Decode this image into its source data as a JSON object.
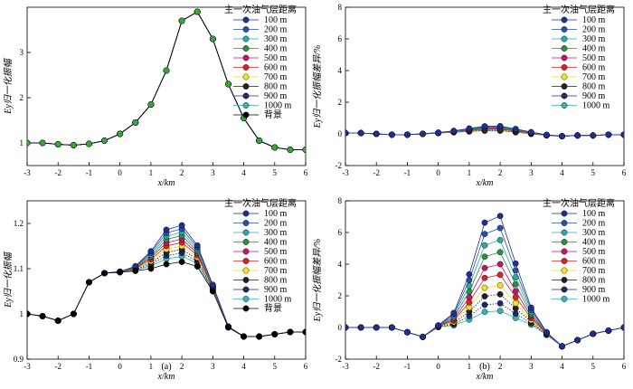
{
  "colors": {
    "100 m": "#1f2f8f",
    "200 m": "#2a4fa8",
    "300 m": "#2aa7a7",
    "400 m": "#2b8f3c",
    "500 m": "#c0156b",
    "600 m": "#d4242a",
    "700 m": "#f2e21a",
    "800 m": "#222222",
    "900 m": "#1b2a70",
    "1000 m": "#37b3b0",
    "背景": "#000000"
  },
  "panel_labels": [
    "(a)",
    "(b)"
  ],
  "chart_data": [
    {
      "id": "top-left",
      "type": "line",
      "title": "",
      "xlabel": "x/km",
      "ylabel": "Ey归一化振幅",
      "xlim": [
        -3,
        6
      ],
      "ylim": [
        0.5,
        4
      ],
      "xticks": [
        -3,
        -2,
        -1,
        0,
        1,
        2,
        3,
        4,
        5,
        6
      ],
      "yticks": [
        1,
        2,
        3
      ],
      "legend_title": "主一次油气层距离",
      "legend": [
        "100 m",
        "200 m",
        "300 m",
        "400 m",
        "500 m",
        "600 m",
        "700 m",
        "800 m",
        "900 m",
        "1000 m",
        "背景"
      ],
      "x": [
        -3,
        -2.5,
        -2,
        -1.5,
        -1,
        -0.5,
        0,
        0.5,
        1,
        1.5,
        2,
        2.5,
        3,
        3.5,
        4,
        4.5,
        5,
        5.5,
        6
      ],
      "base": [
        1.0,
        1.0,
        0.97,
        0.95,
        0.98,
        1.05,
        1.2,
        1.45,
        1.85,
        2.6,
        3.7,
        3.9,
        3.3,
        2.3,
        1.55,
        1.05,
        0.9,
        0.85,
        0.85
      ],
      "deltas": [
        0,
        0,
        0,
        0,
        0,
        0,
        0,
        0,
        0,
        0
      ],
      "bump_center": 1.8,
      "bump_sigma": 0.8
    },
    {
      "id": "top-right",
      "type": "line",
      "title": "",
      "xlabel": "x/km",
      "ylabel": "Ey归一化振幅差异/%",
      "xlim": [
        -3,
        6
      ],
      "ylim": [
        -2,
        8
      ],
      "xticks": [
        -3,
        -2,
        -1,
        0,
        1,
        2,
        3,
        4,
        5,
        6
      ],
      "yticks": [
        -2,
        0,
        2,
        4,
        6,
        8
      ],
      "legend_title": "主一次油气层距离",
      "legend": [
        "100 m",
        "200 m",
        "300 m",
        "400 m",
        "500 m",
        "600 m",
        "700 m",
        "800 m",
        "900 m",
        "1000 m"
      ],
      "x": [
        -3,
        -2.5,
        -2,
        -1.5,
        -1,
        -0.5,
        0,
        0.5,
        1,
        1.5,
        2,
        2.5,
        3,
        3.5,
        4,
        4.5,
        5,
        5.5,
        6
      ],
      "base": [
        0.05,
        0.05,
        0.0,
        -0.05,
        -0.05,
        0.0,
        0.05,
        0.1,
        0.15,
        0.2,
        0.2,
        0.1,
        0.0,
        -0.1,
        -0.15,
        -0.1,
        -0.1,
        -0.05,
        -0.05
      ],
      "deltas": [
        0.3,
        0.26,
        0.22,
        0.18,
        0.14,
        0.1,
        0.07,
        0.04,
        0.02,
        0.0
      ],
      "bump_center": 1.8,
      "bump_sigma": 1.2
    },
    {
      "id": "bottom-left",
      "type": "line",
      "title": "",
      "xlabel": "x/km",
      "ylabel": "Ey归一化振幅",
      "xlim": [
        -3,
        6
      ],
      "ylim": [
        0.9,
        1.25
      ],
      "xticks": [
        -3,
        -2,
        -1,
        0,
        1,
        2,
        3,
        4,
        5,
        6
      ],
      "yticks": [
        0.9,
        1.0,
        1.1,
        1.2
      ],
      "legend_title": "主一次油气层距离",
      "legend": [
        "100 m",
        "200 m",
        "300 m",
        "400 m",
        "500 m",
        "600 m",
        "700 m",
        "800 m",
        "900 m",
        "1000 m",
        "背景"
      ],
      "x": [
        -3,
        -2.5,
        -2,
        -1.5,
        -1,
        -0.5,
        0,
        0.5,
        1,
        1.5,
        2,
        2.5,
        3,
        3.5,
        4,
        4.5,
        5,
        5.5,
        6
      ],
      "base": [
        1.0,
        0.995,
        0.985,
        1.0,
        1.07,
        1.09,
        1.092,
        1.095,
        1.1,
        1.11,
        1.115,
        1.105,
        1.05,
        0.97,
        0.95,
        0.95,
        0.955,
        0.96,
        0.96
      ],
      "deltas": [
        0.085,
        0.077,
        0.069,
        0.061,
        0.053,
        0.045,
        0.037,
        0.029,
        0.021,
        0.013
      ],
      "bump_center": 1.8,
      "bump_sigma": 0.9
    },
    {
      "id": "bottom-right",
      "type": "line",
      "title": "",
      "xlabel": "x/km",
      "ylabel": "Ey归一化振幅差异/%",
      "xlim": [
        -3,
        6
      ],
      "ylim": [
        -2,
        8
      ],
      "xticks": [
        -3,
        -2,
        -1,
        0,
        1,
        2,
        3,
        4,
        5,
        6
      ],
      "yticks": [
        -2,
        0,
        2,
        4,
        6,
        8
      ],
      "legend_title": "主一次油气层距离",
      "legend": [
        "100 m",
        "200 m",
        "300 m",
        "400 m",
        "500 m",
        "600 m",
        "700 m",
        "800 m",
        "900 m",
        "1000 m"
      ],
      "x": [
        -3,
        -2.5,
        -2,
        -1.5,
        -1,
        -0.5,
        0,
        0.5,
        1,
        1.5,
        2,
        2.5,
        3,
        3.5,
        4,
        4.5,
        5,
        5.5,
        6
      ],
      "base": [
        0,
        0,
        0,
        0,
        -0.3,
        -0.6,
        0,
        0,
        0,
        0,
        0,
        0,
        0,
        -0.5,
        -1.2,
        -0.8,
        -0.4,
        -0.2,
        0
      ],
      "deltas": [
        7.4,
        6.6,
        5.8,
        5.0,
        4.2,
        3.5,
        2.8,
        2.2,
        1.6,
        1.1
      ],
      "bump_center": 1.8,
      "bump_sigma": 0.9
    }
  ]
}
